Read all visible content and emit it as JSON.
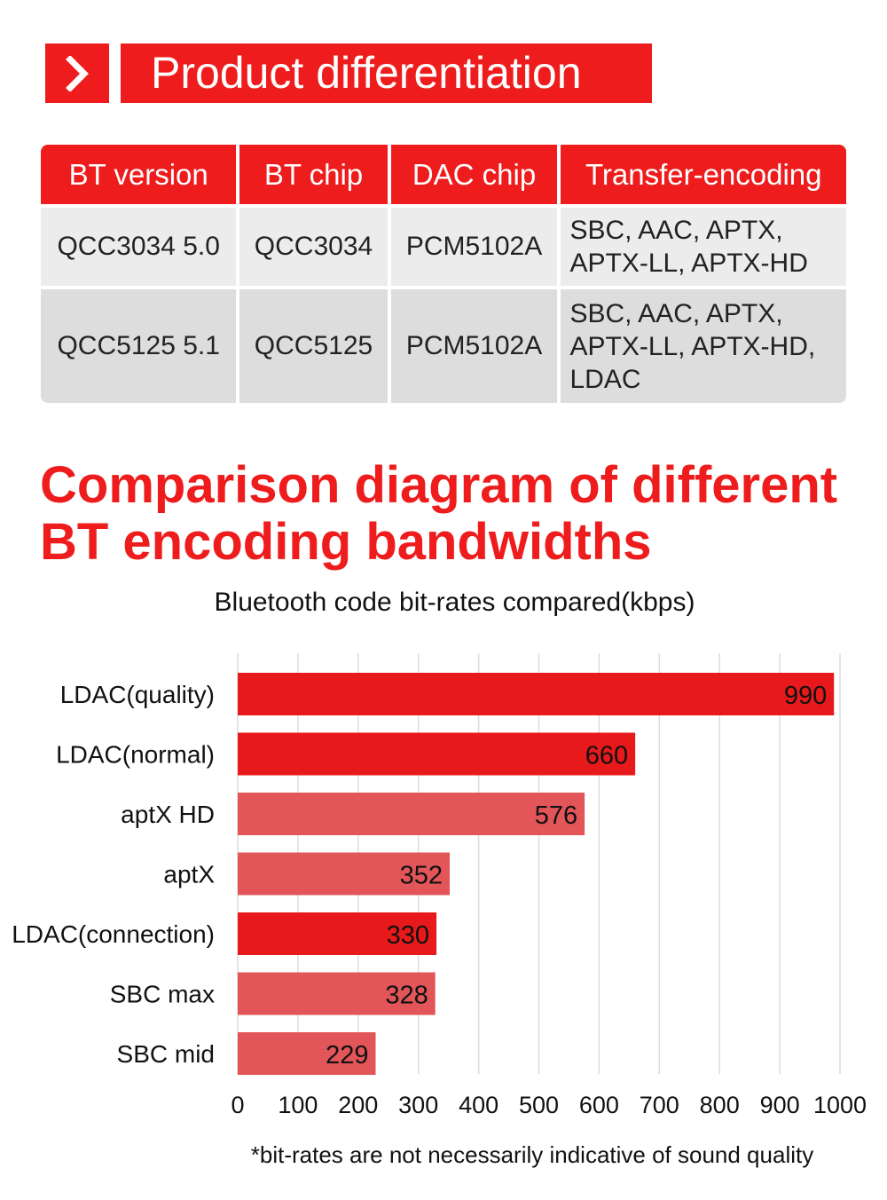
{
  "banner": {
    "icon": "chevron-right-icon",
    "title": "Product differentiation"
  },
  "spec_table": {
    "headers": [
      "BT version",
      "BT chip",
      "DAC chip",
      "Transfer-encoding"
    ],
    "rows": [
      [
        "QCC3034  5.0",
        "QCC3034",
        "PCM5102A",
        "SBC, AAC, APTX,\nAPTX-LL, APTX-HD"
      ],
      [
        "QCC5125  5.1",
        "QCC5125",
        "PCM5102A",
        "SBC, AAC, APTX,\nAPTX-LL, APTX-HD,\nLDAC"
      ]
    ]
  },
  "headline": "Comparison diagram of different\nBT encoding bandwidths",
  "colors": {
    "accent": "#ee1c1c",
    "bar_dark": "#e8191b",
    "bar_light": "#e25558"
  },
  "chart_data": {
    "type": "bar",
    "orientation": "horizontal",
    "title": "Bluetooth code bit-rates compared(kbps)",
    "categories": [
      "LDAC(quality)",
      "LDAC(normal)",
      "aptX HD",
      "aptX",
      "LDAC(connection)",
      "SBC max",
      "SBC mid"
    ],
    "values": [
      990,
      660,
      576,
      352,
      330,
      328,
      229
    ],
    "shade": [
      "dark",
      "dark",
      "light",
      "light",
      "dark",
      "light",
      "light"
    ],
    "xlim": [
      0,
      1000
    ],
    "xticks": [
      0,
      100,
      200,
      300,
      400,
      500,
      600,
      700,
      800,
      900,
      1000
    ],
    "grid": true,
    "xlabel": "",
    "ylabel": "",
    "footnote": "*bit-rates are not necessarily indicative of sound quality"
  }
}
